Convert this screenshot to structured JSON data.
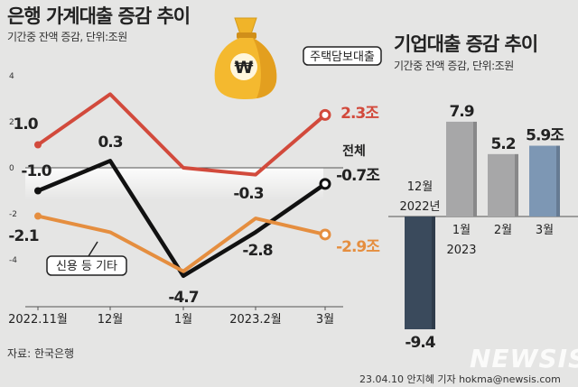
{
  "left_title": "은행 가계대출 증감 추이",
  "left_subtitle": "기간중 잔액 증감, 단위:조원",
  "right_title": "기업대출 증감 추이",
  "right_subtitle": "기간중 잔액 증감, 단위:조원",
  "source": "자료: 한국은행",
  "credit": "23.04.10 안지혜 기자 hokma@newsis.com",
  "logo": "NEWSIS",
  "colors": {
    "mortgage": "#d24a3c",
    "total": "#111111",
    "credit": "#e58e3f",
    "bar": "#a7a7a8",
    "bar_highlight": "#7d97b4",
    "bar_negative": "#3a4a5c"
  },
  "chart_data": [
    {
      "type": "line",
      "title": "은행 가계대출 증감 추이",
      "subtitle": "기간중 잔액 증감, 단위:조원",
      "categories": [
        "2022.11월",
        "12월",
        "1월",
        "2023.2월",
        "3월"
      ],
      "y_ticks": [
        "4",
        "2",
        "0",
        "-2",
        "-4"
      ],
      "ylim": [
        -4.4,
        4.4
      ],
      "series": [
        {
          "name": "주택담보대출",
          "values": [
            1.0,
            3.2,
            0.0,
            -0.3,
            2.3
          ],
          "labels": [
            "1.0",
            "",
            "",
            "",
            "2.3조"
          ]
        },
        {
          "name": "전체",
          "values": [
            -1.0,
            0.3,
            -4.7,
            -2.8,
            -0.7
          ],
          "labels": [
            "-1.0",
            "0.3",
            "-4.7",
            "-2.8",
            "-0.7조"
          ]
        },
        {
          "name": "신용 등 기타",
          "values": [
            -2.1,
            -2.8,
            -4.5,
            -2.2,
            -2.9
          ],
          "labels": [
            "-2.1",
            "",
            "",
            "",
            "-2.9조"
          ]
        }
      ],
      "extra_labels": {
        "mortgage_mid": "-0.3"
      }
    },
    {
      "type": "bar",
      "title": "기업대출 증감 추이",
      "subtitle": "기간중 잔액 증감, 단위:조원",
      "categories": [
        "12월\n2022년",
        "1월\n2023",
        "2월",
        "3월"
      ],
      "category_lines": [
        [
          "12월",
          "2022년"
        ],
        [
          "1월",
          "2023"
        ],
        [
          "2월",
          ""
        ],
        [
          "3월",
          ""
        ]
      ],
      "values": [
        -9.4,
        7.9,
        5.2,
        5.9
      ],
      "labels": [
        "-9.4",
        "7.9",
        "5.2",
        "5.9조"
      ]
    }
  ]
}
